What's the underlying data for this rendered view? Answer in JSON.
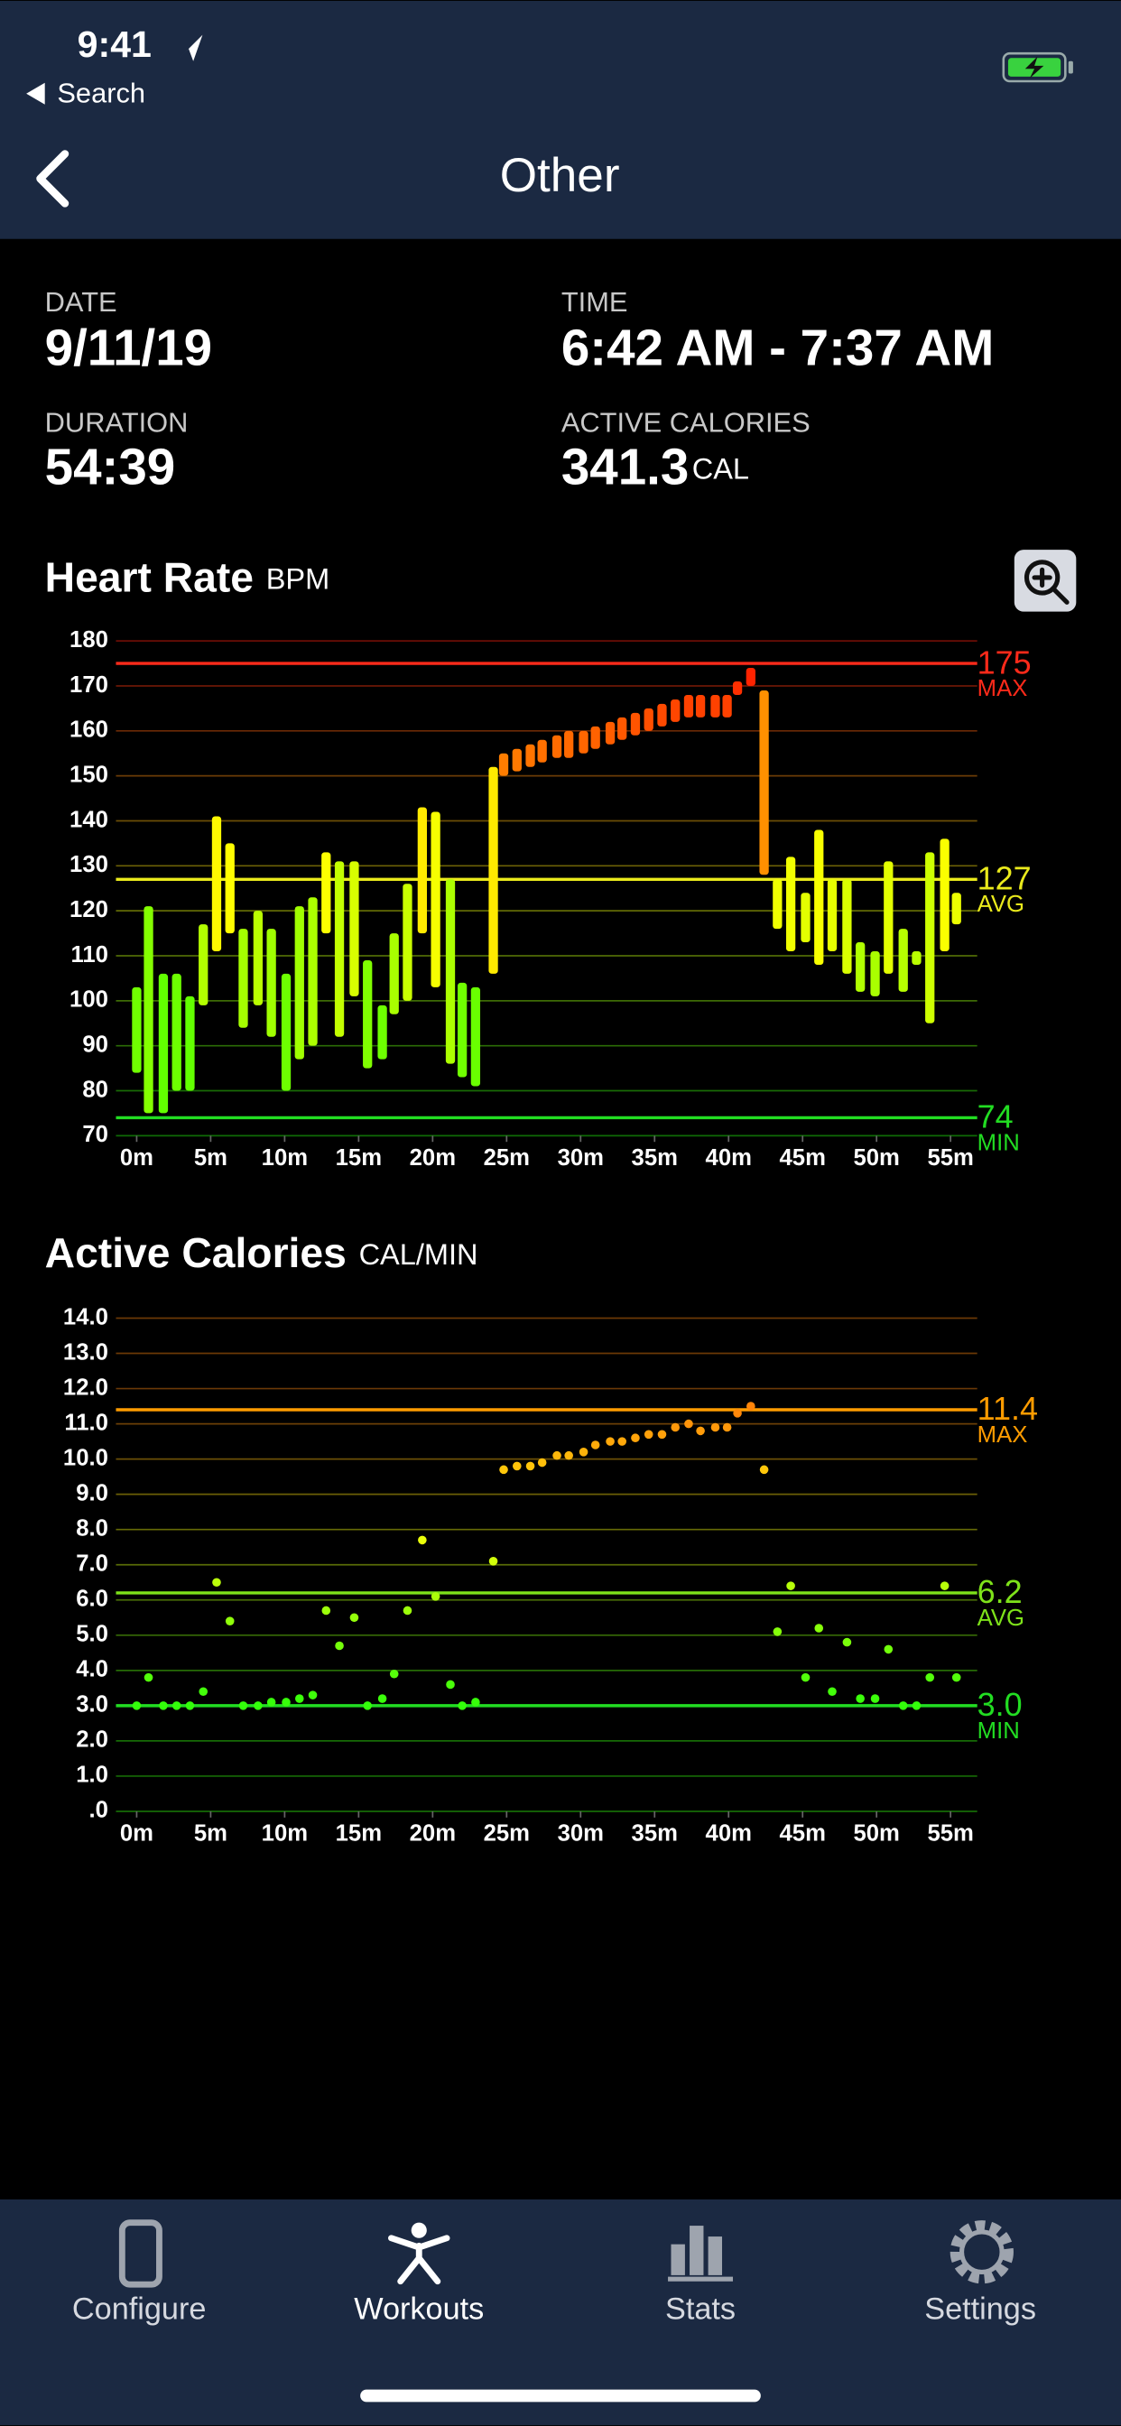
{
  "status_bar": {
    "time": "9:41",
    "back_app": "Search"
  },
  "nav": {
    "title": "Other"
  },
  "summary": [
    {
      "label": "DATE",
      "value": "9/11/19"
    },
    {
      "label": "TIME",
      "value": "6:42 AM - 7:37 AM"
    },
    {
      "label": "DURATION",
      "value": "54:39"
    },
    {
      "label": "ACTIVE CALORIES",
      "value": "341.3",
      "unit": "CAL"
    }
  ],
  "chart_data": [
    {
      "type": "range-bar",
      "title": "Heart Rate",
      "unit": "BPM",
      "x": [
        0,
        0.8,
        1.8,
        2.7,
        3.6,
        4.5,
        5.4,
        6.3,
        7.2,
        8.2,
        9.1,
        10.1,
        11.0,
        11.9,
        12.8,
        13.7,
        14.7,
        15.6,
        16.6,
        17.4,
        18.3,
        19.3,
        20.2,
        21.2,
        22.0,
        22.9,
        24.1,
        24.8,
        25.7,
        26.6,
        27.4,
        28.4,
        29.2,
        30.2,
        31.0,
        32.0,
        32.8,
        33.7,
        34.6,
        35.5,
        36.4,
        37.3,
        38.1,
        39.1,
        39.9,
        40.6,
        41.5,
        42.4,
        43.3,
        44.2,
        45.2,
        46.1,
        47.0,
        48.0,
        48.9,
        49.9,
        50.8,
        51.8,
        52.7,
        53.6,
        54.6,
        55.4
      ],
      "low": [
        84,
        75,
        75,
        80,
        80,
        99,
        111,
        115,
        94,
        99,
        92,
        80,
        87,
        90,
        115,
        92,
        101,
        85,
        87,
        97,
        100,
        115,
        103,
        86,
        83,
        81,
        106,
        150,
        151,
        152,
        153,
        154,
        154,
        155,
        156,
        157,
        158,
        159,
        160,
        161,
        162,
        163,
        163,
        163,
        163,
        168,
        170,
        128,
        116,
        111,
        113,
        108,
        111,
        106,
        102,
        101,
        106,
        102,
        108,
        95,
        111,
        117
      ],
      "high": [
        103,
        121,
        106,
        106,
        101,
        117,
        141,
        135,
        116,
        120,
        116,
        106,
        121,
        123,
        133,
        131,
        131,
        109,
        99,
        115,
        126,
        143,
        142,
        127,
        104,
        103,
        152,
        155,
        156,
        157,
        158,
        159,
        160,
        160,
        161,
        162,
        163,
        164,
        165,
        166,
        167,
        168,
        168,
        168,
        168,
        171,
        174,
        169,
        127,
        132,
        124,
        138,
        127,
        127,
        113,
        111,
        131,
        116,
        111,
        133,
        136,
        124
      ],
      "xlim": [
        -1.4,
        56.8
      ],
      "xticks": [
        {
          "value": 0,
          "label": "0m"
        },
        {
          "value": 5,
          "label": "5m"
        },
        {
          "value": 10,
          "label": "10m"
        },
        {
          "value": 15,
          "label": "15m"
        },
        {
          "value": 20,
          "label": "20m"
        },
        {
          "value": 25,
          "label": "25m"
        },
        {
          "value": 30,
          "label": "30m"
        },
        {
          "value": 35,
          "label": "35m"
        },
        {
          "value": 40,
          "label": "40m"
        },
        {
          "value": 45,
          "label": "45m"
        },
        {
          "value": 50,
          "label": "50m"
        },
        {
          "value": 55,
          "label": "55m"
        }
      ],
      "ylim": [
        70,
        180
      ],
      "yticks": [
        70,
        80,
        90,
        100,
        110,
        120,
        130,
        140,
        150,
        160,
        170,
        180
      ],
      "grid": true,
      "reference_lines": [
        {
          "value": 175,
          "label": "MAX",
          "color": "#ff2a1a"
        },
        {
          "value": 127,
          "label": "AVG",
          "color": "#eaea1c"
        },
        {
          "value": 74,
          "label": "MIN",
          "color": "#22dd22"
        }
      ]
    },
    {
      "type": "scatter",
      "title": "Active Calories",
      "unit": "CAL/MIN",
      "x": [
        0,
        0.8,
        1.8,
        2.7,
        3.6,
        4.5,
        5.4,
        6.3,
        7.2,
        8.2,
        9.1,
        10.1,
        11.0,
        11.9,
        12.8,
        13.7,
        14.7,
        15.6,
        16.6,
        17.4,
        18.3,
        19.3,
        20.2,
        21.2,
        22.0,
        22.9,
        24.1,
        24.8,
        25.7,
        26.6,
        27.4,
        28.4,
        29.2,
        30.2,
        31.0,
        32.0,
        32.8,
        33.7,
        34.6,
        35.5,
        36.4,
        37.3,
        38.1,
        39.1,
        39.9,
        40.6,
        41.5,
        42.4,
        43.3,
        44.2,
        45.2,
        46.1,
        47.0,
        48.0,
        48.9,
        49.9,
        50.8,
        51.8,
        52.7,
        53.6,
        54.6,
        55.4
      ],
      "values": [
        3.0,
        3.8,
        3.0,
        3.0,
        3.0,
        3.4,
        6.5,
        5.4,
        3.0,
        3.0,
        3.1,
        3.1,
        3.2,
        3.3,
        5.7,
        4.7,
        5.5,
        3.0,
        3.2,
        3.9,
        5.7,
        7.7,
        6.1,
        3.6,
        3.0,
        3.1,
        7.1,
        9.7,
        9.8,
        9.8,
        9.9,
        10.1,
        10.1,
        10.2,
        10.4,
        10.5,
        10.5,
        10.6,
        10.7,
        10.7,
        10.9,
        11.0,
        10.8,
        10.9,
        10.9,
        11.3,
        11.5,
        9.7,
        5.1,
        6.4,
        3.8,
        5.2,
        3.4,
        4.8,
        3.2,
        3.2,
        4.6,
        3.0,
        3.0,
        3.8,
        6.4,
        3.8
      ],
      "xlim": [
        -1.4,
        56.8
      ],
      "xticks": [
        {
          "value": 0,
          "label": "0m"
        },
        {
          "value": 5,
          "label": "5m"
        },
        {
          "value": 10,
          "label": "10m"
        },
        {
          "value": 15,
          "label": "15m"
        },
        {
          "value": 20,
          "label": "20m"
        },
        {
          "value": 25,
          "label": "25m"
        },
        {
          "value": 30,
          "label": "30m"
        },
        {
          "value": 35,
          "label": "35m"
        },
        {
          "value": 40,
          "label": "40m"
        },
        {
          "value": 45,
          "label": "45m"
        },
        {
          "value": 50,
          "label": "50m"
        },
        {
          "value": 55,
          "label": "55m"
        }
      ],
      "ylim": [
        0,
        14
      ],
      "yticks": [
        {
          "value": 0,
          "label": ".0"
        },
        {
          "value": 1,
          "label": "1.0"
        },
        {
          "value": 2,
          "label": "2.0"
        },
        {
          "value": 3,
          "label": "3.0"
        },
        {
          "value": 4,
          "label": "4.0"
        },
        {
          "value": 5,
          "label": "5.0"
        },
        {
          "value": 6,
          "label": "6.0"
        },
        {
          "value": 7,
          "label": "7.0"
        },
        {
          "value": 8,
          "label": "8.0"
        },
        {
          "value": 9,
          "label": "9.0"
        },
        {
          "value": 10,
          "label": "10.0"
        },
        {
          "value": 11,
          "label": "11.0"
        },
        {
          "value": 12,
          "label": "12.0"
        },
        {
          "value": 13,
          "label": "13.0"
        },
        {
          "value": 14,
          "label": "14.0"
        }
      ],
      "grid": true,
      "reference_lines": [
        {
          "value": 11.4,
          "label": "MAX",
          "color": "#ff9c00"
        },
        {
          "value": 6.2,
          "label": "AVG",
          "color": "#7ee21a"
        },
        {
          "value": 3,
          "value_label": "3.0",
          "label": "MIN",
          "color": "#22dd22"
        }
      ]
    }
  ],
  "tab_bar": {
    "tabs": [
      "Configure",
      "Workouts",
      "Stats",
      "Settings"
    ],
    "selected": 1
  }
}
